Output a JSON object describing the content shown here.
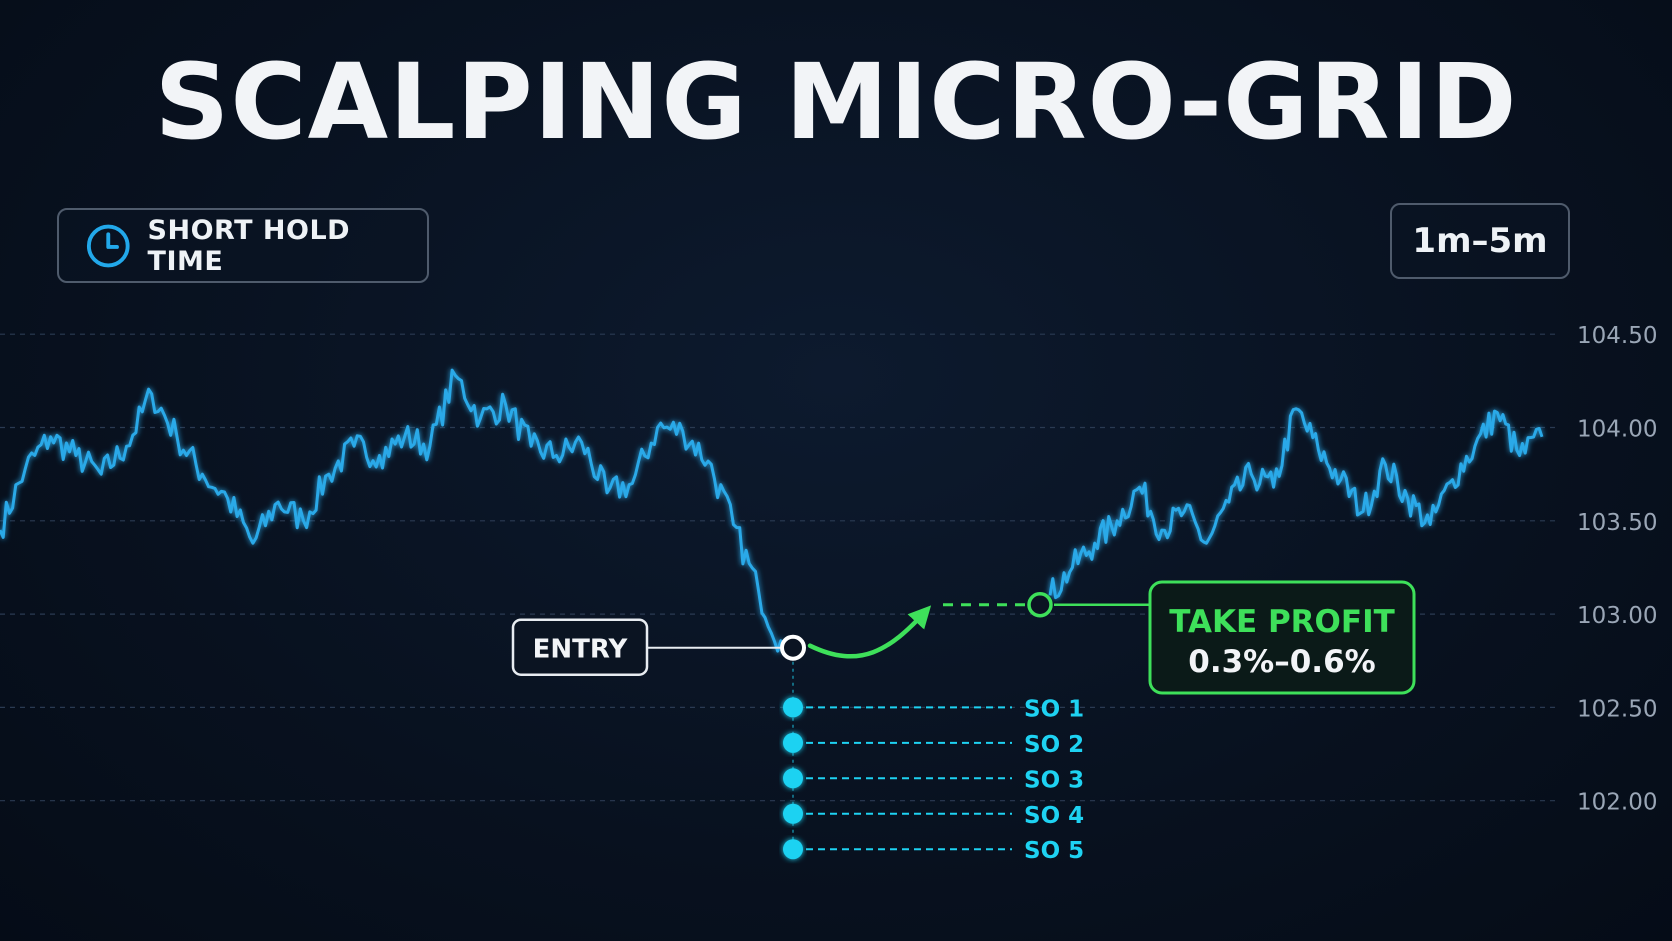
{
  "title": "SCALPING MICRO-GRID",
  "hold_badge": {
    "label": "SHORT HOLD TIME",
    "icon": "clock-icon"
  },
  "timeframe_badge": {
    "label": "1m–5m"
  },
  "colors": {
    "price_line": "#2ba9e8",
    "safety_orders": "#1ed2f2",
    "take_profit": "#3ee05a",
    "grid": "#2a3a52",
    "axis_text": "#9aa6b6"
  },
  "chart_data": {
    "type": "line",
    "title": "SCALPING MICRO-GRID",
    "xlabel": "",
    "ylabel": "",
    "ylim": [
      101.7,
      104.7
    ],
    "y_ticks": [
      "104.50",
      "104.00",
      "103.50",
      "103.00",
      "102.50",
      "102.00"
    ],
    "grid": true,
    "series": [
      {
        "values": [
          103.45,
          103.78,
          103.95,
          103.85,
          103.75,
          103.9,
          104.18,
          103.95,
          103.75,
          103.62,
          103.38,
          103.6,
          103.5,
          103.75,
          103.9,
          103.85,
          103.95,
          103.9,
          104.28,
          104.05,
          104.12,
          103.9,
          103.85,
          103.92,
          103.65,
          103.7,
          104.0,
          103.98,
          103.82,
          103.48,
          103.12,
          102.8
        ]
      },
      {
        "values": [
          103.1,
          103.25,
          103.38,
          103.5,
          103.68,
          103.45,
          103.55,
          103.38,
          103.6,
          103.75,
          103.68,
          104.1,
          103.88,
          103.72,
          103.55,
          103.8,
          103.62,
          103.48,
          103.72,
          103.9,
          104.08,
          103.85,
          103.95
        ]
      }
    ],
    "entry": {
      "label": "ENTRY",
      "price": 102.82
    },
    "take_profit": {
      "label": "TAKE PROFIT",
      "range": "0.3%–0.6%",
      "price": 103.05
    },
    "safety_orders": [
      {
        "label": "SO 1",
        "price": 102.5
      },
      {
        "label": "SO 2",
        "price": 102.31
      },
      {
        "label": "SO 3",
        "price": 102.12
      },
      {
        "label": "SO 4",
        "price": 101.93
      },
      {
        "label": "SO 5",
        "price": 101.74
      }
    ]
  }
}
